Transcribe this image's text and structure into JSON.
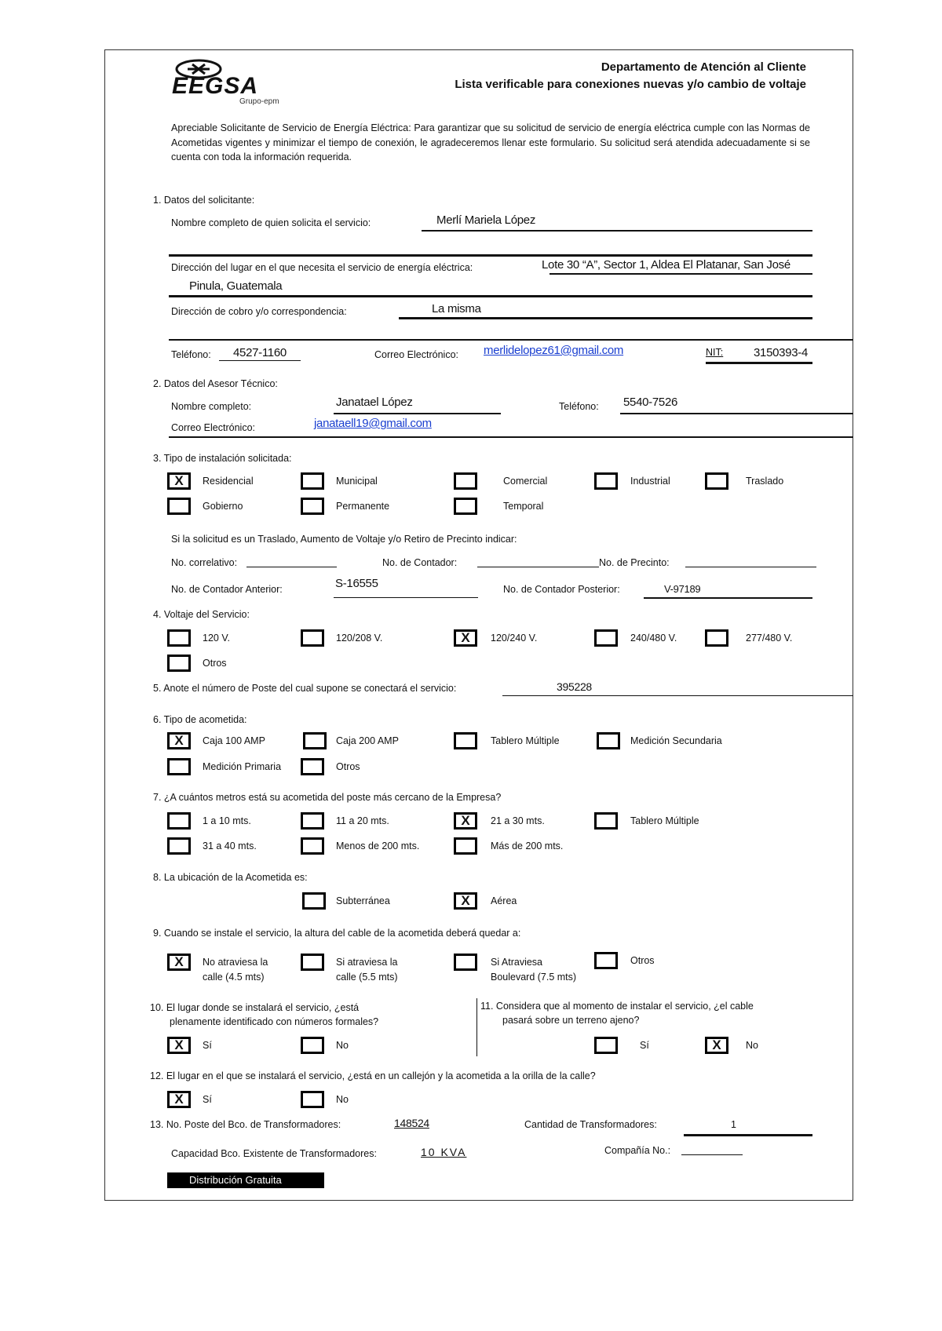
{
  "header": {
    "logo_text": "EEGSA",
    "logo_sub": "Grupo-epm",
    "department": "Departamento de Atención al Cliente",
    "title": "Lista verificable para conexiones nuevas y/o cambio de voltaje"
  },
  "intro": "Apreciable Solicitante de Servicio de Energía Eléctrica: Para garantizar que su solicitud de servicio de energía eléctrica cumple con las Normas de Acometidas vigentes y minimizar el tiempo de conexión, le agradeceremos llenar este formulario. Su solicitud será atendida adecuadamente si se cuenta con toda la información requerida.",
  "s1": {
    "heading": "1.  Datos del solicitante:",
    "name_label": "Nombre completo de quien solicita el servicio:",
    "name_value": "Merlí Mariela López",
    "address_label": "Dirección del lugar en el que necesita el servicio de energía eléctrica:",
    "address_value_1": "Lote 30 “A”, Sector 1, Aldea El Platanar, San José",
    "address_value_2": "Pinula, Guatemala",
    "billing_label": "Dirección de cobro y/o correspondencia:",
    "billing_value": "La misma",
    "phone_label": "Teléfono:",
    "phone_value": "4527-1160",
    "email_label": "Correo Electrónico:",
    "email_value": "merlidelopez61@gmail.com",
    "nit_label": "NIT:",
    "nit_value": "3150393-4"
  },
  "s2": {
    "heading": "2.  Datos del Asesor Técnico:",
    "name_label": "Nombre completo:",
    "name_value": "Janatael López",
    "phone_label": "Teléfono:",
    "phone_value": "5540-7526",
    "email_label": "Correo Electrónico:",
    "email_value": "janataell19@gmail.com"
  },
  "s3": {
    "heading": "3.  Tipo de instalación solicitada:",
    "options": [
      {
        "label": "Residencial",
        "checked": true
      },
      {
        "label": "Municipal",
        "checked": false
      },
      {
        "label": "Comercial",
        "checked": false
      },
      {
        "label": "Industrial",
        "checked": false
      },
      {
        "label": "Traslado",
        "checked": false
      },
      {
        "label": "Gobierno",
        "checked": false
      },
      {
        "label": "Permanente",
        "checked": false
      },
      {
        "label": "Temporal",
        "checked": false
      }
    ],
    "note": "Si la solicitud es un Traslado, Aumento de Voltaje y/o Retiro de Precinto indicar:",
    "correlativo_label": "No. correlativo:",
    "contador_label": "No. de Contador:",
    "precinto_label": "No. de Precinto:",
    "anterior_label": "No. de Contador Anterior:",
    "anterior_value": "S-16555",
    "posterior_label": "No. de Contador Posterior:",
    "posterior_value": "V-97189"
  },
  "s4": {
    "heading": "4.  Voltaje del Servicio:",
    "options": [
      {
        "label": "120 V.",
        "checked": false
      },
      {
        "label": "120/208 V.",
        "checked": false
      },
      {
        "label": "120/240 V.",
        "checked": true
      },
      {
        "label": "240/480 V.",
        "checked": false
      },
      {
        "label": "277/480 V.",
        "checked": false
      },
      {
        "label": "Otros",
        "checked": false
      }
    ]
  },
  "s5": {
    "heading": "5.  Anote el número de Poste del cual supone se conectará el servicio:",
    "value": "395228"
  },
  "s6": {
    "heading": "6.  Tipo de acometida:",
    "options": [
      {
        "label": "Caja 100 AMP",
        "checked": true
      },
      {
        "label": "Caja 200 AMP",
        "checked": false
      },
      {
        "label": "Tablero Múltiple",
        "checked": false
      },
      {
        "label": "Medición Secundaria",
        "checked": false
      },
      {
        "label": "Medición Primaria",
        "checked": false
      },
      {
        "label": "Otros",
        "checked": false
      }
    ]
  },
  "s7": {
    "heading": "7.  ¿A cuántos metros está su acometida del poste más cercano de la Empresa?",
    "options": [
      {
        "label": "1 a 10 mts.",
        "checked": false
      },
      {
        "label": "11 a 20 mts.",
        "checked": false
      },
      {
        "label": "21 a 30 mts.",
        "checked": true
      },
      {
        "label": "Tablero Múltiple",
        "checked": false
      },
      {
        "label": "31 a 40 mts.",
        "checked": false
      },
      {
        "label": "Menos de 200 mts.",
        "checked": false
      },
      {
        "label": "Más de 200 mts.",
        "checked": false
      }
    ]
  },
  "s8": {
    "heading": "8.  La ubicación de la Acometida es:",
    "options": [
      {
        "label": "Subterránea",
        "checked": false
      },
      {
        "label": "Aérea",
        "checked": true
      }
    ]
  },
  "s9": {
    "heading": "9.  Cuando se instale el servicio, la altura del cable de la acometida deberá quedar a:",
    "options": [
      {
        "label": "No atraviesa la",
        "label2": "calle (4.5 mts)",
        "checked": true
      },
      {
        "label": "Si atraviesa la",
        "label2": "calle (5.5 mts)",
        "checked": false
      },
      {
        "label": "Si Atraviesa",
        "label2": "Boulevard (7.5 mts)",
        "checked": false
      },
      {
        "label": "Otros",
        "checked": false
      }
    ]
  },
  "s10": {
    "heading_1": "10. El  lugar  donde  se  instalará  el  servicio,  ¿está",
    "heading_2": "plenamente identificado con números formales?",
    "options": [
      {
        "label": "Sí",
        "checked": true
      },
      {
        "label": "No",
        "checked": false
      }
    ]
  },
  "s11": {
    "heading_1": "11.  Considera que al momento de instalar el servicio, ¿el cable",
    "heading_2": "pasará sobre un terreno ajeno?",
    "options": [
      {
        "label": "Sí",
        "checked": false
      },
      {
        "label": "No",
        "checked": true
      }
    ]
  },
  "s12": {
    "heading": "12. El lugar en el que se instalará el servicio, ¿está en un callejón y la acometida a la orilla de la calle?",
    "options": [
      {
        "label": "Sí",
        "checked": true
      },
      {
        "label": "No",
        "checked": false
      }
    ]
  },
  "s13": {
    "poste_label": "13. No. Poste del Bco. de Transformadores:",
    "poste_value": "148524",
    "cantidad_label": "Cantidad de Transformadores:",
    "cantidad_value": "1",
    "capacidad_label": "Capacidad Bco. Existente de Transformadores:",
    "capacidad_value": "10 KVA",
    "compania_label": "Compañía No.:"
  },
  "footer": {
    "badge": "Distribución Gratuita"
  }
}
